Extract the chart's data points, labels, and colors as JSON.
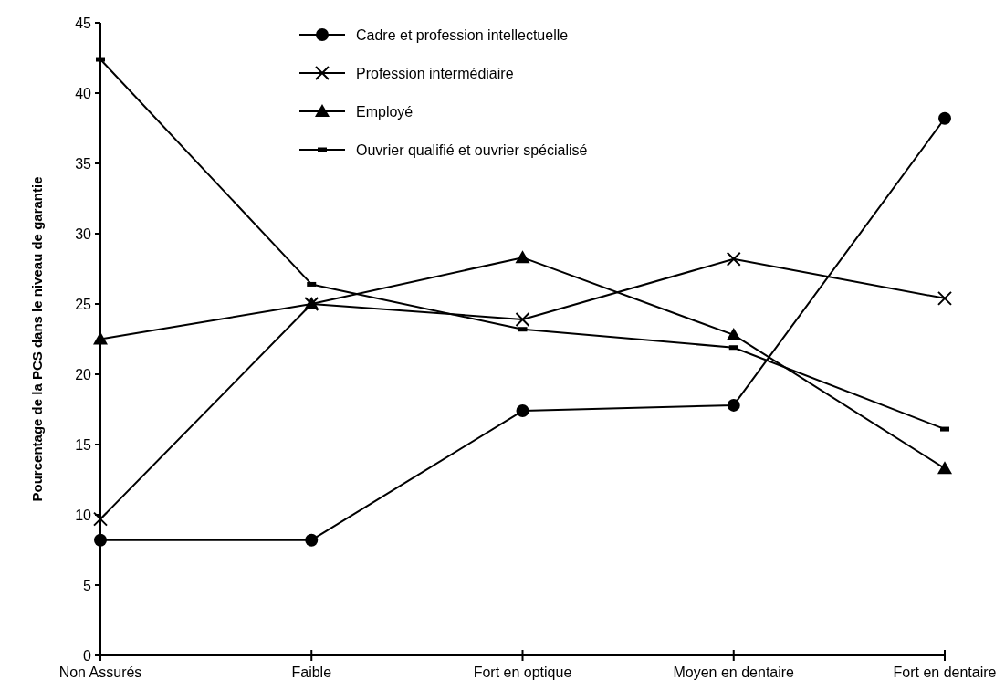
{
  "chart_data": {
    "type": "line",
    "ylabel": "Pourcentage de la PCS dans le niveau de garantie",
    "categories": [
      "Non Assurés",
      "Faible",
      "Fort en optique",
      "Moyen en dentaire",
      "Fort en dentaire"
    ],
    "series": [
      {
        "name": "Cadre et profession intellectuelle",
        "color": "#000000",
        "marker": "circle",
        "values": [
          8.2,
          8.2,
          17.4,
          17.8,
          38.2
        ]
      },
      {
        "name": "Profession intermédiaire",
        "color": "#000000",
        "marker": "cross",
        "values": [
          9.7,
          25.0,
          23.9,
          28.2,
          25.4
        ]
      },
      {
        "name": "Employé",
        "color": "#000000",
        "marker": "triangle",
        "values": [
          22.5,
          25.0,
          28.3,
          22.8,
          13.3
        ]
      },
      {
        "name": "Ouvrier qualifié et ouvrier spécialisé",
        "color": "#000000",
        "marker": "square",
        "values": [
          42.4,
          26.4,
          23.2,
          21.9,
          16.1
        ]
      }
    ],
    "ylim": [
      0,
      45
    ],
    "yticks": [
      0,
      5,
      10,
      15,
      20,
      25,
      30,
      35,
      40,
      45
    ],
    "legend": "top",
    "grid": false
  }
}
